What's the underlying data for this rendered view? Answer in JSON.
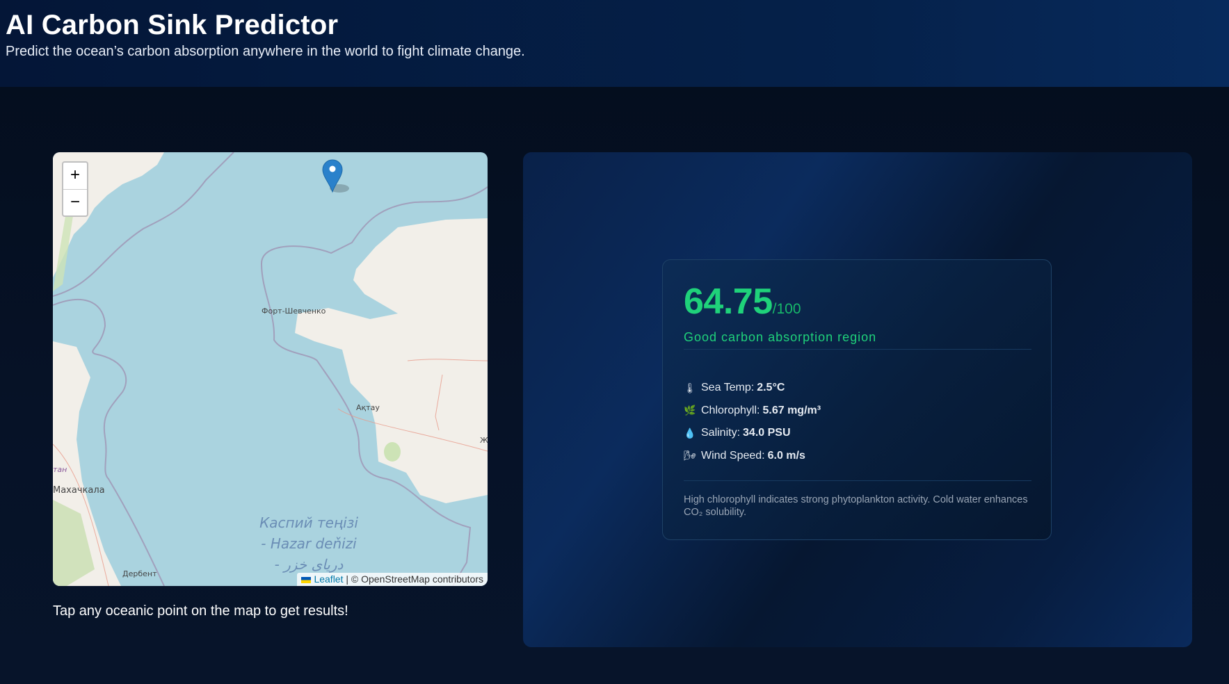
{
  "header": {
    "title": "AI Carbon Sink Predictor",
    "subtitle": "Predict the ocean’s carbon absorption anywhere in the world to fight climate change."
  },
  "map": {
    "zoom_in_label": "+",
    "zoom_out_label": "−",
    "labels": {
      "fort": "Форт-Шевченко",
      "aktau": "Ақтау",
      "makhachkala": "Махачкала",
      "derbent": "Дербент",
      "partial_tan": "тан",
      "partial_zh": "Ж",
      "sea_line1": "Каспий теңізі",
      "sea_line2": "- Hazar deňizi",
      "sea_line3": "- دریای خزر"
    },
    "attribution": {
      "leaflet": "Leaflet",
      "separator": " | ",
      "osm": "© OpenStreetMap contributors"
    },
    "colors": {
      "water": "#aad3df",
      "land": "#f2efe9",
      "marker": "#2a81cb"
    }
  },
  "caption": "Tap any oceanic point on the map to get results!",
  "result": {
    "score": "64.75",
    "score_max": "/100",
    "verdict": "Good carbon absorption region",
    "stats": [
      {
        "icon": "thermometer-icon",
        "glyph": "🌡",
        "label": "Sea Temp:",
        "value": "2.5°C"
      },
      {
        "icon": "leaf-icon",
        "glyph": "🌿",
        "label": "Chlorophyll:",
        "value": "5.67 mg/m³"
      },
      {
        "icon": "droplet-icon",
        "glyph": "💧",
        "label": "Salinity:",
        "value": "34.0 PSU"
      },
      {
        "icon": "wind-icon",
        "glyph": "🌬",
        "label": "Wind Speed:",
        "value": "6.0 m/s"
      }
    ],
    "note": "High chlorophyll indicates strong phytoplankton activity. Cold water enhances CO₂ solubility.",
    "colors": {
      "score": "#1fd27a"
    }
  }
}
